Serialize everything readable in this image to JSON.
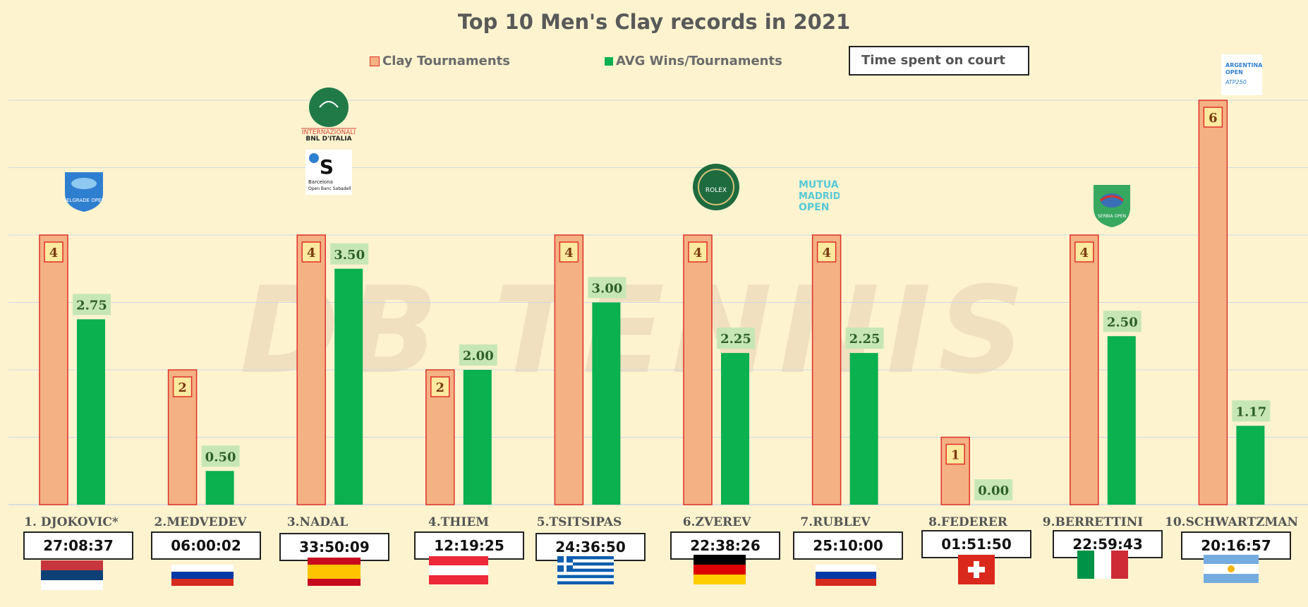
{
  "title": "Top 10 Men's Clay records in 2021",
  "legend": {
    "clay": "Clay Tournaments",
    "avg": "AVG Wins/Tournaments",
    "time": "Time spent on court"
  },
  "watermark": "DB TENNIS",
  "colors": {
    "clay_fill": "#f4b183",
    "clay_border": "#e0302a",
    "avg_fill": "#0bb04f",
    "clay_label_bg": "#fde9a0",
    "avg_label_bg": "#c6e7b5",
    "avg_label_text": "#2f5f27",
    "clay_label_text": "#7a3b10",
    "grid": "#cfd8e3",
    "background": "#fdf3cf"
  },
  "chart_data": {
    "type": "bar",
    "categories": [
      "1. DJOKOVIC*",
      "2.MEDVEDEV",
      "3.NADAL",
      "4.THIEM",
      "5.TSITSIPAS",
      "6.ZVEREV",
      "7.RUBLEV",
      "8.FEDERER",
      "9.BERRETTINI",
      "10.SCHWARTZMAN"
    ],
    "series": [
      {
        "name": "Clay Tournaments",
        "values": [
          4,
          2,
          4,
          2,
          4,
          4,
          4,
          1,
          4,
          6
        ],
        "labels": [
          "4",
          "2",
          "4",
          "2",
          "4",
          "4",
          "4",
          "1",
          "4",
          "6"
        ]
      },
      {
        "name": "AVG Wins/Tournaments",
        "values": [
          2.75,
          0.5,
          3.5,
          2.0,
          3.0,
          2.25,
          2.25,
          0.0,
          2.5,
          1.17
        ],
        "labels": [
          "2.75",
          "0.50",
          "3.50",
          "2.00",
          "3.00",
          "2.25",
          "2.25",
          "0.00",
          "2.50",
          "1.17"
        ]
      }
    ],
    "time_on_court": [
      "27:08:37",
      "06:00:02",
      "33:50:09",
      "12:19:25",
      "24:36:50",
      "22:38:26",
      "25:10:00",
      "01:51:50",
      "22:59:43",
      "20:16:57"
    ],
    "ylim": [
      0,
      6
    ],
    "grid": true,
    "legend_position": "top"
  },
  "logos": {
    "belgrade": "BELGRADE OPEN",
    "rome_line1": "INTERNAZIONALI",
    "rome_line2": "BNL D'ITALIA",
    "barcelona_line1": "Barcelona",
    "barcelona_line2": "Open Banc Sabadell",
    "montecarlo": "ROLEX",
    "madrid_line1": "MUTUA",
    "madrid_line2": "MADRID",
    "madrid_line3": "OPEN",
    "serbia": "SERBIA OPEN",
    "argentina_line1": "ARGENTINA",
    "argentina_line2": "OPEN",
    "argentina_line3": "ATP250"
  },
  "flags": [
    "serbia-flag",
    "russia-flag",
    "spain-flag",
    "austria-flag",
    "greece-flag",
    "germany-flag",
    "russia-flag",
    "switzerland-flag",
    "italy-flag",
    "argentina-flag"
  ]
}
